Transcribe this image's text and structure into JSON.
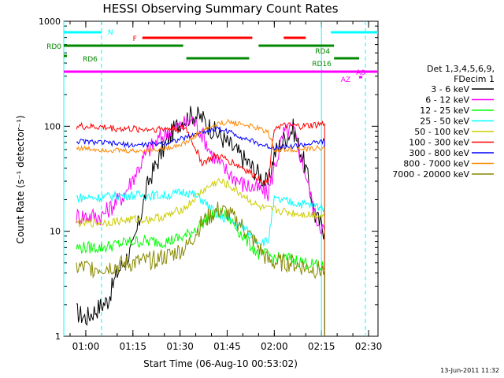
{
  "chart_data": {
    "type": "line",
    "title": "HESSI Observing Summary Count Rates",
    "xlabel": "Start Time (06-Aug-10 00:53:02)",
    "ylabel": "Count Rate (s⁻¹ detector⁻¹)",
    "y_scale": "log",
    "ylim": [
      1,
      1000
    ],
    "xlim": [
      "00:53",
      "02:33"
    ],
    "x_ticks": [
      "01:00",
      "01:15",
      "01:30",
      "01:45",
      "02:00",
      "02:15",
      "02:30"
    ],
    "y_ticks": [
      "1",
      "10",
      "100",
      "1000"
    ],
    "legend_title": [
      "Det 1,3,4,5,6,9,",
      "FDecim 1"
    ],
    "legend_placement": "right",
    "footer_date": "13-Jun-2011 11:32",
    "series": [
      {
        "name": "3 - 6 keV",
        "color": "#000000",
        "x": [
          "00:57",
          "01:00",
          "01:07",
          "01:10",
          "01:15",
          "01:20",
          "01:26",
          "01:30",
          "01:34",
          "01:37",
          "01:40",
          "01:45",
          "01:50",
          "01:55",
          "01:58",
          "02:00",
          "02:03",
          "02:06",
          "02:10",
          "02:13",
          "02:16"
        ],
        "y": [
          1.7,
          1.5,
          2.2,
          4,
          7,
          30,
          75,
          110,
          130,
          120,
          95,
          70,
          50,
          35,
          28,
          55,
          75,
          95,
          40,
          14,
          10
        ]
      },
      {
        "name": "6 - 12 keV",
        "color": "#ff00ff",
        "x": [
          "00:57",
          "01:05",
          "01:08",
          "01:12",
          "01:15",
          "01:20",
          "01:26",
          "01:30",
          "01:34",
          "01:37",
          "01:40",
          "01:43",
          "01:46",
          "01:50",
          "01:55",
          "01:58",
          "02:00",
          "02:03",
          "02:06",
          "02:10",
          "02:13",
          "02:16"
        ],
        "y": [
          14,
          14,
          17,
          22,
          32,
          60,
          90,
          100,
          115,
          85,
          55,
          42,
          35,
          28,
          25,
          23,
          40,
          85,
          95,
          35,
          14,
          10
        ]
      },
      {
        "name": "12 - 25 keV",
        "color": "#00ff00",
        "x": [
          "00:57",
          "01:05",
          "01:10",
          "01:15",
          "01:20",
          "01:26",
          "01:32",
          "01:37",
          "01:42",
          "01:45",
          "01:50",
          "01:55",
          "01:58",
          "02:00",
          "02:05",
          "02:10",
          "02:16"
        ],
        "y": [
          7,
          7,
          7.5,
          8,
          8,
          8,
          9,
          12,
          15,
          14,
          9,
          6,
          6,
          5.5,
          5.5,
          5,
          4.5
        ]
      },
      {
        "name": "25 - 50 keV",
        "color": "#00ffff",
        "x": [
          "00:57",
          "01:05",
          "01:10",
          "01:15",
          "01:20",
          "01:26",
          "01:32",
          "01:37",
          "01:42",
          "01:45",
          "01:50",
          "01:55",
          "01:58",
          "02:00",
          "02:05",
          "02:10",
          "02:16"
        ],
        "y": [
          21,
          21,
          22,
          22,
          22,
          22,
          24,
          20,
          14,
          13,
          11,
          8,
          8,
          20,
          19,
          18,
          17
        ]
      },
      {
        "name": "50 - 100 keV",
        "color": "#cccc00",
        "x": [
          "00:57",
          "01:05",
          "01:10",
          "01:15",
          "01:20",
          "01:26",
          "01:32",
          "01:37",
          "01:42",
          "01:45",
          "01:50",
          "01:55",
          "01:58",
          "02:00",
          "02:05",
          "02:10",
          "02:16"
        ],
        "y": [
          12,
          12,
          12.5,
          13,
          13,
          14,
          17,
          24,
          30,
          28,
          22,
          17,
          16,
          16,
          15,
          14.5,
          14
        ]
      },
      {
        "name": "100 - 300 keV",
        "color": "#ff0000",
        "x": [
          "00:57",
          "01:05",
          "01:10",
          "01:15",
          "01:20",
          "01:26",
          "01:32",
          "01:37",
          "01:42",
          "01:45",
          "01:50",
          "01:55",
          "01:58",
          "02:00",
          "02:05",
          "02:10",
          "02:16"
        ],
        "y": [
          100,
          98,
          95,
          94,
          94,
          95,
          95,
          45,
          52,
          48,
          40,
          32,
          29,
          100,
          100,
          100,
          105
        ]
      },
      {
        "name": "300 - 800 keV",
        "color": "#0000ff",
        "x": [
          "00:57",
          "01:05",
          "01:10",
          "01:15",
          "01:20",
          "01:26",
          "01:32",
          "01:37",
          "01:42",
          "01:45",
          "01:50",
          "01:55",
          "01:58",
          "02:00",
          "02:05",
          "02:10",
          "02:16"
        ],
        "y": [
          72,
          70,
          68,
          66,
          67,
          70,
          78,
          88,
          95,
          90,
          78,
          68,
          64,
          63,
          64,
          67,
          72
        ]
      },
      {
        "name": "800 - 7000 keV",
        "color": "#ff8800",
        "x": [
          "00:57",
          "01:05",
          "01:10",
          "01:15",
          "01:20",
          "01:26",
          "01:32",
          "01:37",
          "01:42",
          "01:45",
          "01:50",
          "01:55",
          "01:58",
          "02:00",
          "02:05",
          "02:10",
          "02:16"
        ],
        "y": [
          62,
          60,
          59,
          58,
          59,
          62,
          70,
          90,
          105,
          110,
          105,
          95,
          88,
          60,
          60,
          60,
          63
        ]
      },
      {
        "name": "7000 - 20000 keV",
        "color": "#888800",
        "x": [
          "00:57",
          "01:05",
          "01:10",
          "01:15",
          "01:20",
          "01:26",
          "01:32",
          "01:37",
          "01:42",
          "01:45",
          "01:50",
          "01:55",
          "01:58",
          "02:00",
          "02:05",
          "02:10",
          "02:16"
        ],
        "y": [
          4.5,
          4.5,
          4.7,
          5,
          5.2,
          5.8,
          7,
          12,
          16,
          15,
          11,
          7,
          5.2,
          5,
          5,
          4.5,
          4.2
        ]
      }
    ],
    "status_bars": [
      {
        "label": "N",
        "color": "#00ffff",
        "segments": [
          [
            "00:53",
            "01:05"
          ],
          [
            "02:18",
            "02:33"
          ]
        ]
      },
      {
        "label": "F",
        "color": "#ff0000",
        "segments": [
          [
            "01:18",
            "01:53"
          ],
          [
            "02:03",
            "02:10"
          ]
        ]
      },
      {
        "label": "RD0",
        "color": "#008800",
        "segments": [
          [
            "00:53",
            "01:31"
          ],
          [
            "01:55",
            "02:18"
          ]
        ]
      },
      {
        "label": "RD4",
        "color": "#008800",
        "segments": [
          [
            "02:18",
            "02:19"
          ]
        ]
      },
      {
        "label": "RD6",
        "color": "#008800",
        "segments": [
          [
            "00:53",
            "00:54"
          ]
        ]
      },
      {
        "label": "RD16",
        "color": "#008800",
        "segments": [
          [
            "01:32",
            "01:52"
          ],
          [
            "02:19",
            "02:27"
          ]
        ]
      },
      {
        "label": "A0",
        "color": "#ff00ff",
        "segments": [
          [
            "00:53",
            "02:33"
          ]
        ]
      },
      {
        "label": "AZ",
        "color": "#ff00ff",
        "segments": [
          [
            "02:27",
            "02:28"
          ]
        ]
      }
    ]
  }
}
